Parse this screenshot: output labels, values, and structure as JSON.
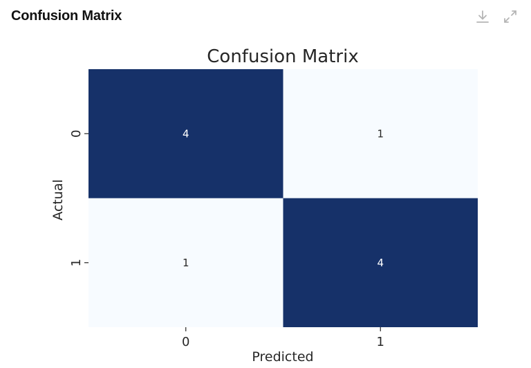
{
  "panel": {
    "title": "Confusion Matrix",
    "download_icon": "download-icon",
    "expand_icon": "expand-icon"
  },
  "chart_data": {
    "type": "heatmap",
    "title": "Confusion Matrix",
    "xlabel": "Predicted",
    "ylabel": "Actual",
    "x_ticks": [
      "0",
      "1"
    ],
    "y_ticks": [
      "0",
      "1"
    ],
    "values": [
      [
        4,
        1
      ],
      [
        1,
        4
      ]
    ],
    "colormap": "Blues",
    "color_low": "#f7fbff",
    "color_high": "#163169",
    "text_dark": "#262626",
    "text_light": "#ffffff",
    "colorbar": false
  }
}
